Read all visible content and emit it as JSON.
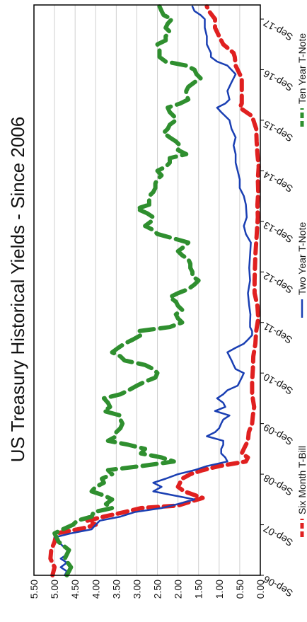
{
  "chart_data": {
    "type": "line",
    "title": "US Treasury Historical Yields - Since 2006",
    "xlabel": "",
    "ylabel": "",
    "ylim": [
      0,
      5.5
    ],
    "xlim": [
      "Sep-06",
      "Oct-17"
    ],
    "grid": true,
    "legend_position": "bottom",
    "y_ticks": [
      "0.00",
      "0.50",
      "1.00",
      "1.50",
      "2.00",
      "2.50",
      "3.00",
      "3.50",
      "4.00",
      "4.50",
      "5.00",
      "5.50"
    ],
    "x_ticks": [
      "Sep-06",
      "Sep-07",
      "Sep-08",
      "Sep-09",
      "Sep-10",
      "Sep-11",
      "Sep-12",
      "Sep-13",
      "Sep-14",
      "Sep-15",
      "Sep-16",
      "Sep-17"
    ],
    "series": [
      {
        "name": "Six Month T-Bill",
        "color": "#e02020",
        "style": "dashed",
        "points": [
          [
            2006.67,
            5.05
          ],
          [
            2006.83,
            5.0
          ],
          [
            2007.0,
            5.1
          ],
          [
            2007.17,
            5.08
          ],
          [
            2007.33,
            5.0
          ],
          [
            2007.5,
            4.95
          ],
          [
            2007.6,
            4.3
          ],
          [
            2007.67,
            4.0
          ],
          [
            2007.75,
            4.2
          ],
          [
            2007.83,
            3.8
          ],
          [
            2007.92,
            3.3
          ],
          [
            2008.0,
            2.9
          ],
          [
            2008.05,
            2.0
          ],
          [
            2008.1,
            1.8
          ],
          [
            2008.2,
            1.4
          ],
          [
            2008.33,
            1.85
          ],
          [
            2008.42,
            2.0
          ],
          [
            2008.5,
            1.95
          ],
          [
            2008.58,
            1.9
          ],
          [
            2008.67,
            1.7
          ],
          [
            2008.75,
            1.4
          ],
          [
            2008.83,
            1.0
          ],
          [
            2008.92,
            0.35
          ],
          [
            2009.0,
            0.3
          ],
          [
            2009.08,
            0.45
          ],
          [
            2009.17,
            0.4
          ],
          [
            2009.33,
            0.3
          ],
          [
            2009.5,
            0.28
          ],
          [
            2009.67,
            0.2
          ],
          [
            2009.83,
            0.18
          ],
          [
            2010.0,
            0.15
          ],
          [
            2010.25,
            0.2
          ],
          [
            2010.5,
            0.2
          ],
          [
            2010.75,
            0.18
          ],
          [
            2011.0,
            0.17
          ],
          [
            2011.25,
            0.12
          ],
          [
            2011.5,
            0.1
          ],
          [
            2011.75,
            0.05
          ],
          [
            2012.0,
            0.07
          ],
          [
            2012.25,
            0.14
          ],
          [
            2012.5,
            0.14
          ],
          [
            2012.75,
            0.13
          ],
          [
            2013.0,
            0.12
          ],
          [
            2013.25,
            0.1
          ],
          [
            2013.5,
            0.08
          ],
          [
            2013.75,
            0.06
          ],
          [
            2014.0,
            0.07
          ],
          [
            2014.25,
            0.05
          ],
          [
            2014.5,
            0.06
          ],
          [
            2014.75,
            0.04
          ],
          [
            2015.0,
            0.07
          ],
          [
            2015.25,
            0.09
          ],
          [
            2015.5,
            0.1
          ],
          [
            2015.75,
            0.2
          ],
          [
            2015.92,
            0.5
          ],
          [
            2016.0,
            0.45
          ],
          [
            2016.25,
            0.45
          ],
          [
            2016.5,
            0.45
          ],
          [
            2016.75,
            0.6
          ],
          [
            2016.92,
            0.62
          ],
          [
            2017.0,
            0.65
          ],
          [
            2017.17,
            0.9
          ],
          [
            2017.33,
            1.0
          ],
          [
            2017.5,
            1.1
          ],
          [
            2017.67,
            1.1
          ],
          [
            2017.83,
            1.25
          ],
          [
            2017.92,
            1.3
          ]
        ]
      },
      {
        "name": "Two Year T-Note",
        "color": "#1a3fb3",
        "style": "solid",
        "points": [
          [
            2006.67,
            4.75
          ],
          [
            2006.75,
            4.7
          ],
          [
            2006.83,
            4.85
          ],
          [
            2006.92,
            4.7
          ],
          [
            2007.0,
            4.85
          ],
          [
            2007.08,
            4.7
          ],
          [
            2007.17,
            4.65
          ],
          [
            2007.25,
            4.8
          ],
          [
            2007.33,
            4.9
          ],
          [
            2007.42,
            5.0
          ],
          [
            2007.5,
            4.6
          ],
          [
            2007.58,
            4.1
          ],
          [
            2007.67,
            4.0
          ],
          [
            2007.75,
            3.9
          ],
          [
            2007.83,
            3.4
          ],
          [
            2007.92,
            3.05
          ],
          [
            2008.0,
            2.4
          ],
          [
            2008.08,
            2.0
          ],
          [
            2008.17,
            1.6
          ],
          [
            2008.25,
            2.1
          ],
          [
            2008.33,
            2.6
          ],
          [
            2008.42,
            2.4
          ],
          [
            2008.5,
            2.6
          ],
          [
            2008.58,
            2.3
          ],
          [
            2008.67,
            2.0
          ],
          [
            2008.75,
            1.6
          ],
          [
            2008.83,
            1.3
          ],
          [
            2008.92,
            0.8
          ],
          [
            2009.0,
            0.85
          ],
          [
            2009.08,
            0.95
          ],
          [
            2009.17,
            0.95
          ],
          [
            2009.25,
            0.9
          ],
          [
            2009.33,
            0.9
          ],
          [
            2009.42,
            1.3
          ],
          [
            2009.5,
            1.1
          ],
          [
            2009.58,
            1.0
          ],
          [
            2009.67,
            0.95
          ],
          [
            2009.75,
            0.9
          ],
          [
            2009.83,
            0.75
          ],
          [
            2009.92,
            1.1
          ],
          [
            2010.0,
            0.85
          ],
          [
            2010.08,
            0.9
          ],
          [
            2010.17,
            1.05
          ],
          [
            2010.25,
            0.9
          ],
          [
            2010.33,
            0.8
          ],
          [
            2010.42,
            0.55
          ],
          [
            2010.5,
            0.5
          ],
          [
            2010.58,
            0.45
          ],
          [
            2010.67,
            0.4
          ],
          [
            2010.75,
            0.6
          ],
          [
            2010.83,
            0.65
          ],
          [
            2010.92,
            0.7
          ],
          [
            2011.0,
            0.75
          ],
          [
            2011.08,
            0.8
          ],
          [
            2011.17,
            0.6
          ],
          [
            2011.25,
            0.4
          ],
          [
            2011.33,
            0.3
          ],
          [
            2011.42,
            0.2
          ],
          [
            2011.5,
            0.2
          ],
          [
            2011.58,
            0.25
          ],
          [
            2011.67,
            0.25
          ],
          [
            2011.83,
            0.24
          ],
          [
            2012.0,
            0.27
          ],
          [
            2012.25,
            0.3
          ],
          [
            2012.5,
            0.25
          ],
          [
            2012.75,
            0.27
          ],
          [
            2013.0,
            0.25
          ],
          [
            2013.25,
            0.23
          ],
          [
            2013.42,
            0.35
          ],
          [
            2013.58,
            0.4
          ],
          [
            2013.75,
            0.33
          ],
          [
            2014.0,
            0.35
          ],
          [
            2014.17,
            0.4
          ],
          [
            2014.33,
            0.5
          ],
          [
            2014.5,
            0.5
          ],
          [
            2014.67,
            0.55
          ],
          [
            2014.83,
            0.6
          ],
          [
            2015.0,
            0.6
          ],
          [
            2015.17,
            0.65
          ],
          [
            2015.33,
            0.6
          ],
          [
            2015.5,
            0.7
          ],
          [
            2015.67,
            0.75
          ],
          [
            2015.83,
            0.95
          ],
          [
            2015.92,
            1.05
          ],
          [
            2016.0,
            0.85
          ],
          [
            2016.08,
            0.75
          ],
          [
            2016.25,
            0.8
          ],
          [
            2016.42,
            0.7
          ],
          [
            2016.58,
            0.6
          ],
          [
            2016.75,
            0.8
          ],
          [
            2016.83,
            1.05
          ],
          [
            2016.92,
            1.2
          ],
          [
            2017.0,
            1.2
          ],
          [
            2017.17,
            1.3
          ],
          [
            2017.33,
            1.3
          ],
          [
            2017.5,
            1.35
          ],
          [
            2017.67,
            1.35
          ],
          [
            2017.75,
            1.45
          ],
          [
            2017.83,
            1.6
          ],
          [
            2017.92,
            1.65
          ]
        ]
      },
      {
        "name": "Ten Year T-Note",
        "color": "#2f8f2f",
        "style": "dashed-thick",
        "points": [
          [
            2006.67,
            4.7
          ],
          [
            2006.83,
            4.6
          ],
          [
            2007.0,
            4.75
          ],
          [
            2007.17,
            4.65
          ],
          [
            2007.33,
            4.9
          ],
          [
            2007.5,
            5.0
          ],
          [
            2007.58,
            4.8
          ],
          [
            2007.67,
            4.55
          ],
          [
            2007.75,
            4.45
          ],
          [
            2007.83,
            4.1
          ],
          [
            2007.92,
            4.05
          ],
          [
            2008.0,
            3.6
          ],
          [
            2008.08,
            3.75
          ],
          [
            2008.17,
            3.6
          ],
          [
            2008.25,
            3.8
          ],
          [
            2008.33,
            4.1
          ],
          [
            2008.42,
            4.0
          ],
          [
            2008.5,
            3.8
          ],
          [
            2008.58,
            3.85
          ],
          [
            2008.67,
            3.6
          ],
          [
            2008.75,
            3.7
          ],
          [
            2008.83,
            2.9
          ],
          [
            2008.92,
            2.1
          ],
          [
            2009.0,
            2.4
          ],
          [
            2009.08,
            2.9
          ],
          [
            2009.17,
            2.8
          ],
          [
            2009.25,
            3.2
          ],
          [
            2009.33,
            3.7
          ],
          [
            2009.42,
            3.5
          ],
          [
            2009.5,
            3.5
          ],
          [
            2009.58,
            3.4
          ],
          [
            2009.67,
            3.35
          ],
          [
            2009.75,
            3.4
          ],
          [
            2009.83,
            3.4
          ],
          [
            2009.92,
            3.8
          ],
          [
            2010.0,
            3.65
          ],
          [
            2010.08,
            3.7
          ],
          [
            2010.17,
            3.8
          ],
          [
            2010.25,
            3.4
          ],
          [
            2010.33,
            3.2
          ],
          [
            2010.42,
            3.0
          ],
          [
            2010.5,
            2.8
          ],
          [
            2010.58,
            2.55
          ],
          [
            2010.67,
            2.5
          ],
          [
            2010.75,
            2.6
          ],
          [
            2010.83,
            2.8
          ],
          [
            2010.92,
            3.3
          ],
          [
            2011.0,
            3.4
          ],
          [
            2011.08,
            3.6
          ],
          [
            2011.17,
            3.45
          ],
          [
            2011.25,
            3.3
          ],
          [
            2011.33,
            3.1
          ],
          [
            2011.42,
            2.9
          ],
          [
            2011.5,
            2.95
          ],
          [
            2011.58,
            2.2
          ],
          [
            2011.67,
            1.9
          ],
          [
            2011.75,
            2.0
          ],
          [
            2011.83,
            2.05
          ],
          [
            2011.92,
            1.9
          ],
          [
            2012.0,
            2.0
          ],
          [
            2012.08,
            2.05
          ],
          [
            2012.17,
            2.2
          ],
          [
            2012.25,
            2.0
          ],
          [
            2012.33,
            1.75
          ],
          [
            2012.42,
            1.6
          ],
          [
            2012.5,
            1.5
          ],
          [
            2012.58,
            1.65
          ],
          [
            2012.67,
            1.65
          ],
          [
            2012.75,
            1.7
          ],
          [
            2012.83,
            1.7
          ],
          [
            2012.92,
            1.75
          ],
          [
            2013.0,
            1.9
          ],
          [
            2013.08,
            2.0
          ],
          [
            2013.17,
            1.85
          ],
          [
            2013.25,
            1.75
          ],
          [
            2013.33,
            2.1
          ],
          [
            2013.42,
            2.5
          ],
          [
            2013.5,
            2.6
          ],
          [
            2013.58,
            2.8
          ],
          [
            2013.67,
            2.65
          ],
          [
            2013.75,
            2.6
          ],
          [
            2013.83,
            2.75
          ],
          [
            2013.92,
            3.0
          ],
          [
            2014.0,
            2.7
          ],
          [
            2014.08,
            2.7
          ],
          [
            2014.17,
            2.7
          ],
          [
            2014.25,
            2.6
          ],
          [
            2014.33,
            2.55
          ],
          [
            2014.42,
            2.55
          ],
          [
            2014.5,
            2.5
          ],
          [
            2014.58,
            2.4
          ],
          [
            2014.67,
            2.5
          ],
          [
            2014.75,
            2.3
          ],
          [
            2014.83,
            2.2
          ],
          [
            2014.92,
            2.2
          ],
          [
            2015.0,
            1.8
          ],
          [
            2015.08,
            2.0
          ],
          [
            2015.17,
            1.95
          ],
          [
            2015.25,
            2.05
          ],
          [
            2015.33,
            2.2
          ],
          [
            2015.42,
            2.35
          ],
          [
            2015.5,
            2.25
          ],
          [
            2015.58,
            2.2
          ],
          [
            2015.67,
            2.05
          ],
          [
            2015.75,
            2.1
          ],
          [
            2015.83,
            2.2
          ],
          [
            2015.92,
            2.25
          ],
          [
            2016.0,
            1.95
          ],
          [
            2016.08,
            1.75
          ],
          [
            2016.17,
            1.8
          ],
          [
            2016.25,
            1.8
          ],
          [
            2016.33,
            1.75
          ],
          [
            2016.42,
            1.6
          ],
          [
            2016.5,
            1.45
          ],
          [
            2016.58,
            1.55
          ],
          [
            2016.67,
            1.6
          ],
          [
            2016.75,
            1.8
          ],
          [
            2016.83,
            2.3
          ],
          [
            2016.92,
            2.45
          ],
          [
            2017.0,
            2.45
          ],
          [
            2017.08,
            2.45
          ],
          [
            2017.17,
            2.5
          ],
          [
            2017.25,
            2.3
          ],
          [
            2017.33,
            2.3
          ],
          [
            2017.42,
            2.2
          ],
          [
            2017.5,
            2.3
          ],
          [
            2017.58,
            2.25
          ],
          [
            2017.67,
            2.15
          ],
          [
            2017.75,
            2.35
          ],
          [
            2017.83,
            2.4
          ],
          [
            2017.92,
            2.45
          ]
        ]
      }
    ]
  }
}
